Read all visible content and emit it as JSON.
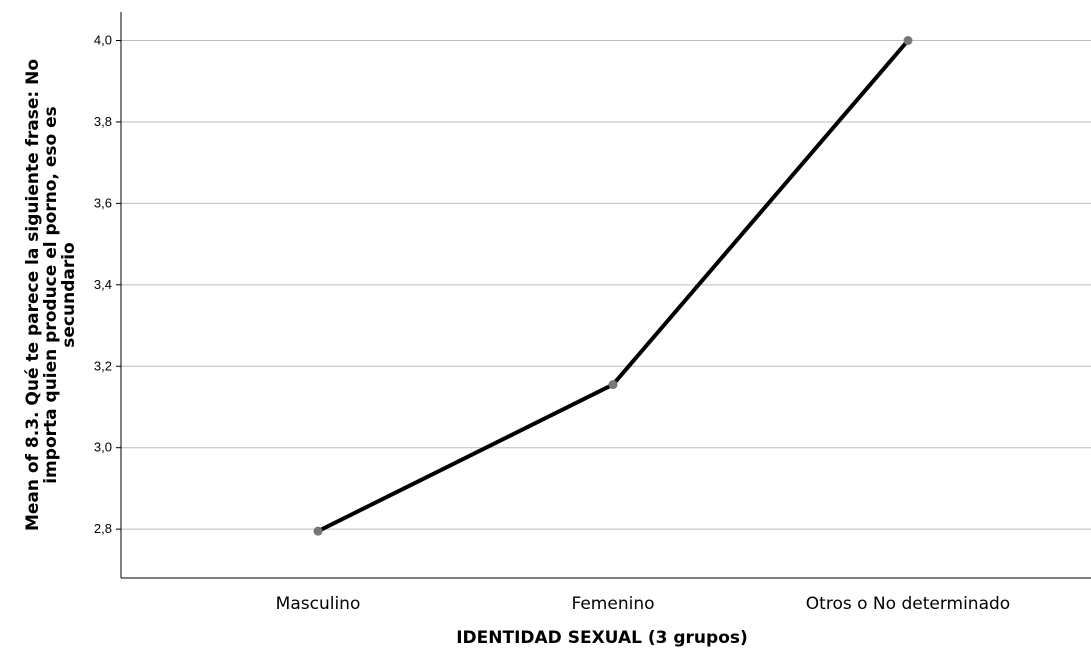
{
  "chart_data": {
    "type": "line",
    "categories": [
      "Masculino",
      "Femenino",
      "Otros o No determinado"
    ],
    "values": [
      2.795,
      3.155,
      4.0
    ],
    "ylabel": [
      "Mean of 8.3. Qué te parece la siguiente frase: No",
      "importa quien produce el porno, eso es",
      "secundario"
    ],
    "xlabel": "IDENTIDAD SEXUAL (3 grupos)",
    "ylim": [
      2.68,
      4.07
    ],
    "yticks": [
      2.8,
      3.0,
      3.2,
      3.4,
      3.6,
      3.8,
      4.0
    ],
    "ytick_labels": [
      "2,8",
      "3,0",
      "3,2",
      "3,4",
      "3,6",
      "3,8",
      "4,0"
    ],
    "grid": true,
    "line_color": "#000000",
    "marker_color": "#777777",
    "grid_color": "#bdbdbd"
  }
}
